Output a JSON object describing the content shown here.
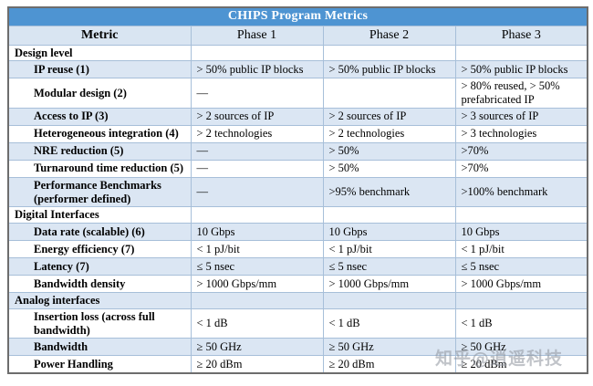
{
  "table": {
    "title": "CHIPS Program Metrics",
    "columns": [
      "Metric",
      "Phase 1",
      "Phase 2",
      "Phase 3"
    ],
    "rows": [
      {
        "type": "section",
        "metric": "Design level",
        "values": [
          "",
          "",
          ""
        ]
      },
      {
        "type": "metric",
        "metric": "IP reuse  (1)",
        "values": [
          "> 50% public IP blocks",
          "> 50% public IP blocks",
          "> 50% public IP blocks"
        ]
      },
      {
        "type": "metric",
        "metric": "Modular design  (2)",
        "values": [
          "—",
          "",
          "> 80% reused, > 50% prefabricated  IP"
        ]
      },
      {
        "type": "metric",
        "metric": "Access to IP (3)",
        "values": [
          "> 2 sources of IP",
          "> 2 sources of IP",
          "> 3 sources of IP"
        ]
      },
      {
        "type": "metric",
        "metric": "Heterogeneous integration (4)",
        "values": [
          "> 2 technologies",
          "> 2 technologies",
          "> 3 technologies"
        ]
      },
      {
        "type": "metric",
        "metric": "NRE reduction  (5)",
        "values": [
          "—",
          "> 50%",
          ">70%"
        ]
      },
      {
        "type": "metric",
        "metric": "Turnaround time reduction  (5)",
        "values": [
          "—",
          "> 50%",
          ">70%"
        ]
      },
      {
        "type": "metric",
        "metric": "Performance Benchmarks (performer defined)",
        "values": [
          "—",
          ">95% benchmark",
          ">100% benchmark"
        ]
      },
      {
        "type": "section",
        "metric": "Digital Interfaces",
        "values": [
          "",
          "",
          ""
        ]
      },
      {
        "type": "metric",
        "metric": "Data rate (scalable) (6)",
        "values": [
          "10 Gbps",
          "10 Gbps",
          "10 Gbps"
        ]
      },
      {
        "type": "metric",
        "metric": "Energy efficiency (7)",
        "values": [
          "< 1 pJ/bit",
          "< 1 pJ/bit",
          "< 1 pJ/bit"
        ]
      },
      {
        "type": "metric",
        "metric": "Latency (7)",
        "values": [
          "≤ 5 nsec",
          "≤ 5 nsec",
          "≤ 5 nsec"
        ]
      },
      {
        "type": "metric",
        "metric": "Bandwidth density",
        "values": [
          "> 1000 Gbps/mm",
          "> 1000 Gbps/mm",
          "> 1000 Gbps/mm"
        ]
      },
      {
        "type": "section",
        "metric": "Analog interfaces",
        "values": [
          "",
          "",
          ""
        ]
      },
      {
        "type": "metric",
        "metric": "Insertion loss (across full bandwidth)",
        "values": [
          "< 1 dB",
          "< 1 dB",
          "< 1 dB"
        ]
      },
      {
        "type": "metric",
        "metric": "Bandwidth",
        "values": [
          "≥ 50 GHz",
          "≥ 50 GHz",
          "≥ 50 GHz"
        ]
      },
      {
        "type": "metric",
        "metric": "Power Handling",
        "values": [
          "≥ 20 dBm",
          "≥ 20 dBm",
          "≥ 20 dBm"
        ]
      }
    ]
  },
  "watermark": {
    "text": "知乎@逍遥科技"
  },
  "colors": {
    "title_bar": "#4e94d2",
    "header_row": "#d9e5f2",
    "band_row": "#dbe6f3",
    "inner_border": "#a7bfd9",
    "outer_border": "#6d6d6d",
    "watermark_gray": "#8f959e"
  }
}
